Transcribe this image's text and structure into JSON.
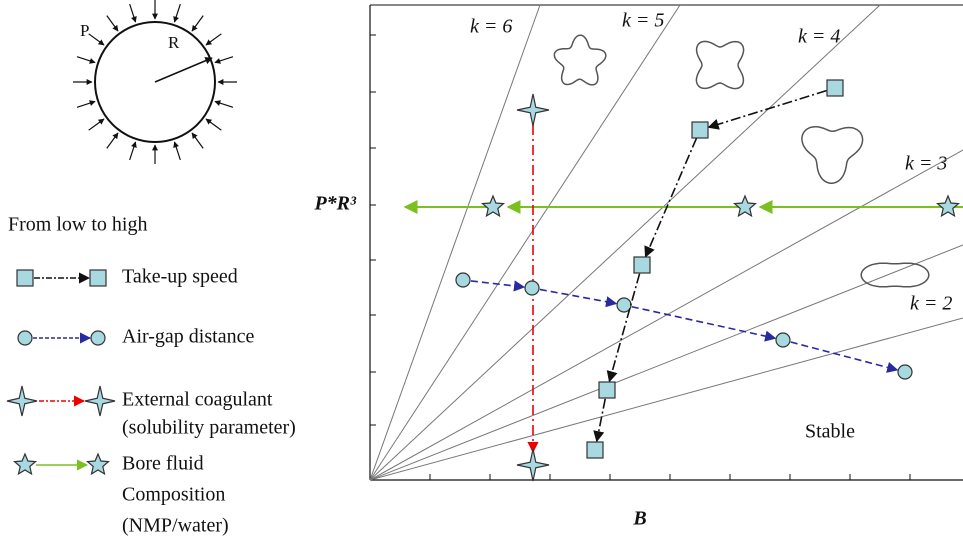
{
  "schematic": {
    "pressure_label": "P",
    "radius_label": "R"
  },
  "legend": {
    "title": "From low to high",
    "items": [
      {
        "lines": [
          "Take-up speed"
        ]
      },
      {
        "lines": [
          "Air-gap distance"
        ]
      },
      {
        "lines": [
          "External coagulant",
          "(solubility parameter)"
        ]
      },
      {
        "lines": [
          "Bore fluid",
          "Composition",
          "(NMP/water)"
        ]
      }
    ]
  },
  "plot": {
    "y_label": "P*R³",
    "x_label": "B",
    "mode_labels": [
      "k = 6",
      "k = 5",
      "k = 4",
      "k = 3",
      "k = 2"
    ],
    "stable_label": "Stable"
  }
}
